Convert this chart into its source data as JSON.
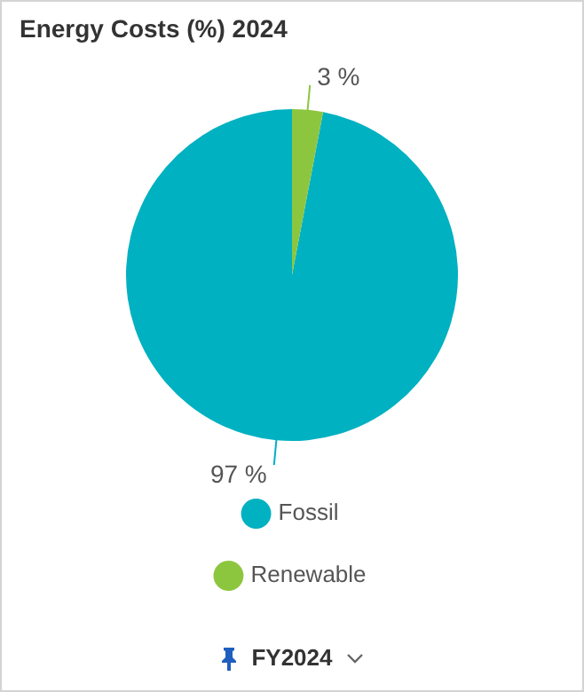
{
  "chart_data": {
    "type": "pie",
    "title": "Energy Costs (%) 2024",
    "categories": [
      "Fossil",
      "Renewable"
    ],
    "values": [
      97,
      3
    ],
    "colors": [
      "#00b1c1",
      "#8cc63f"
    ],
    "value_labels": [
      "97 %",
      "3 %"
    ],
    "legend": "bottom",
    "annotations": [
      "FY2024"
    ]
  }
}
